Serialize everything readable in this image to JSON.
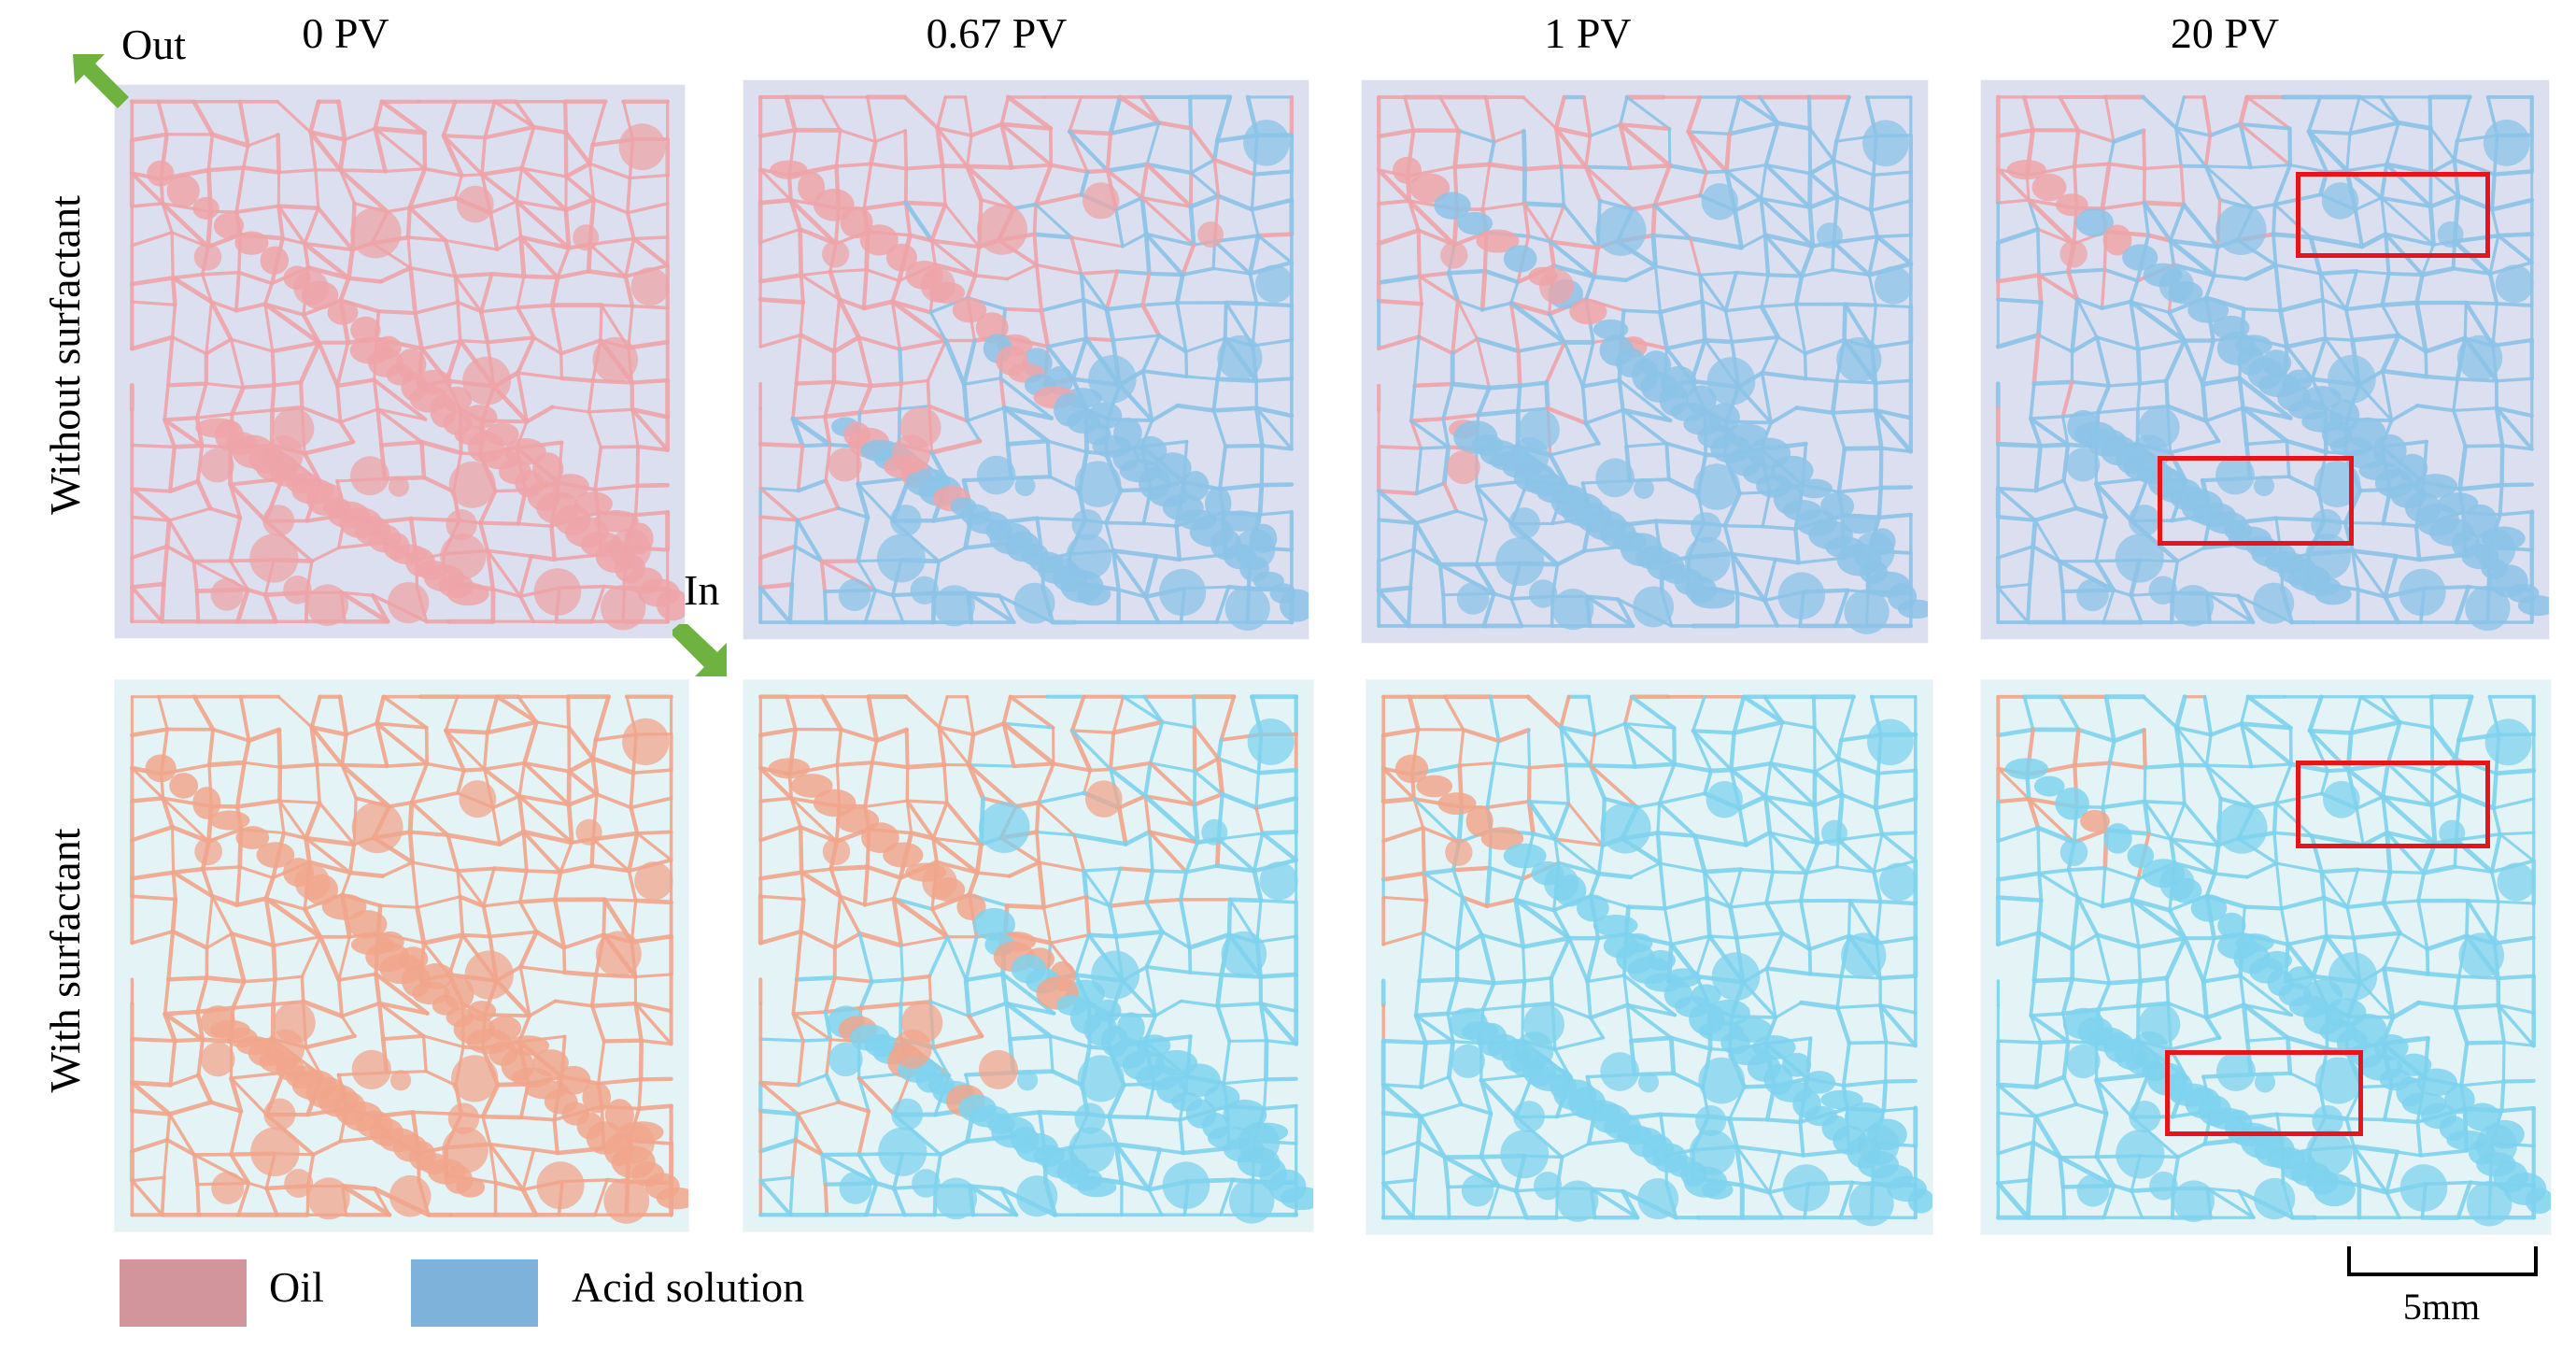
{
  "columns": [
    "0 PV",
    "0.67 PV",
    "1 PV",
    "20 PV"
  ],
  "rows": [
    "Without  surfactant",
    "With surfactant"
  ],
  "flow": {
    "out_label": "Out",
    "in_label": "In"
  },
  "legend": [
    {
      "label": "Oil",
      "color": "#d3959c"
    },
    {
      "label": "Acid solution",
      "color": "#7fb2da"
    }
  ],
  "scale_bar": {
    "label": "5mm"
  },
  "colors": {
    "oil_row1": "#eea4a8",
    "oil_row2": "#f1a68c",
    "acid_row1": "#8cc3e8",
    "acid_row2": "#7fd2ee",
    "highlight_box": "#e8141b",
    "arrow": "#6fb23f",
    "bg_row1": "#dcdff0",
    "bg_row2": "#e4f3f6"
  },
  "panels": [
    {
      "row": 0,
      "col": 0,
      "acid_fraction": 0.0
    },
    {
      "row": 0,
      "col": 1,
      "acid_fraction": 0.55
    },
    {
      "row": 0,
      "col": 2,
      "acid_fraction": 0.68
    },
    {
      "row": 0,
      "col": 3,
      "acid_fraction": 0.75
    },
    {
      "row": 1,
      "col": 0,
      "acid_fraction": 0.0
    },
    {
      "row": 1,
      "col": 1,
      "acid_fraction": 0.55
    },
    {
      "row": 1,
      "col": 2,
      "acid_fraction": 0.78
    },
    {
      "row": 1,
      "col": 3,
      "acid_fraction": 0.86
    }
  ]
}
